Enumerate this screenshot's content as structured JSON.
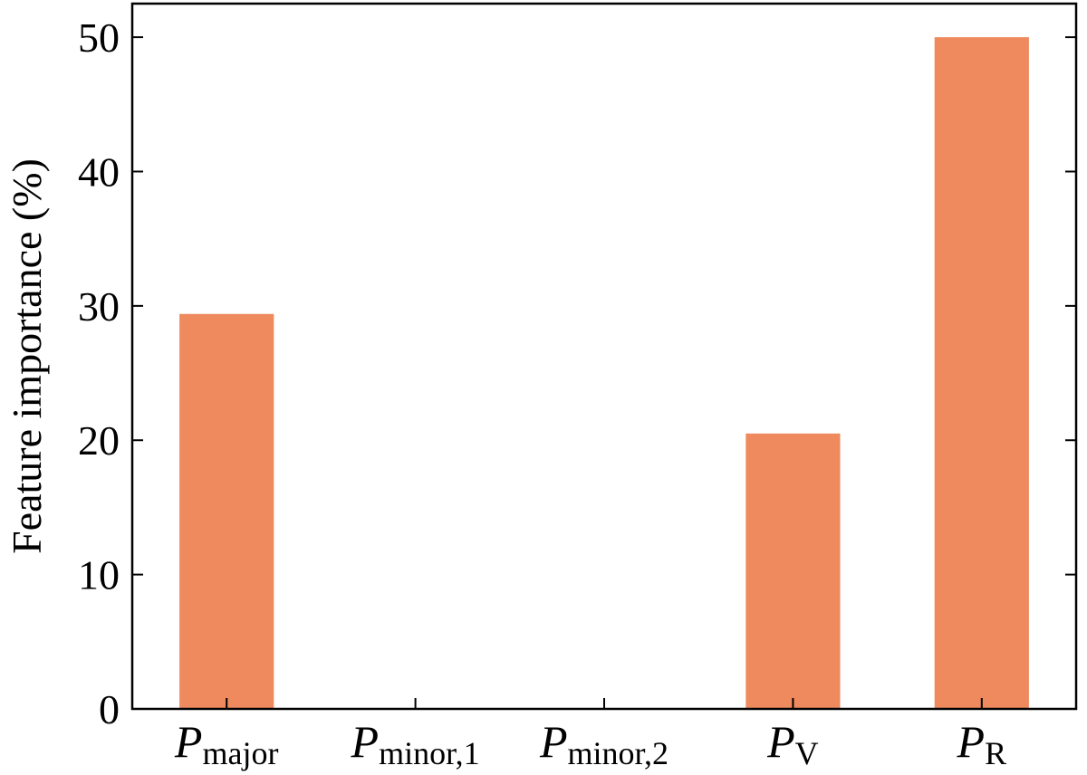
{
  "chart_data": {
    "type": "bar",
    "categories": [
      {
        "main": "P",
        "sub": "major"
      },
      {
        "main": "P",
        "sub": "minor,1"
      },
      {
        "main": "P",
        "sub": "minor,2"
      },
      {
        "main": "P",
        "sub": "V"
      },
      {
        "main": "P",
        "sub": "R"
      }
    ],
    "values": [
      29.4,
      0,
      0,
      20.5,
      50.0
    ],
    "title": "",
    "xlabel": "",
    "ylabel": "Feature importance (%)",
    "ylim": [
      0,
      52.5
    ],
    "yticks": [
      "0",
      "10",
      "20",
      "30",
      "40",
      "50"
    ],
    "bar_color": "#ee8a5d",
    "grid": false,
    "legend": "none"
  }
}
